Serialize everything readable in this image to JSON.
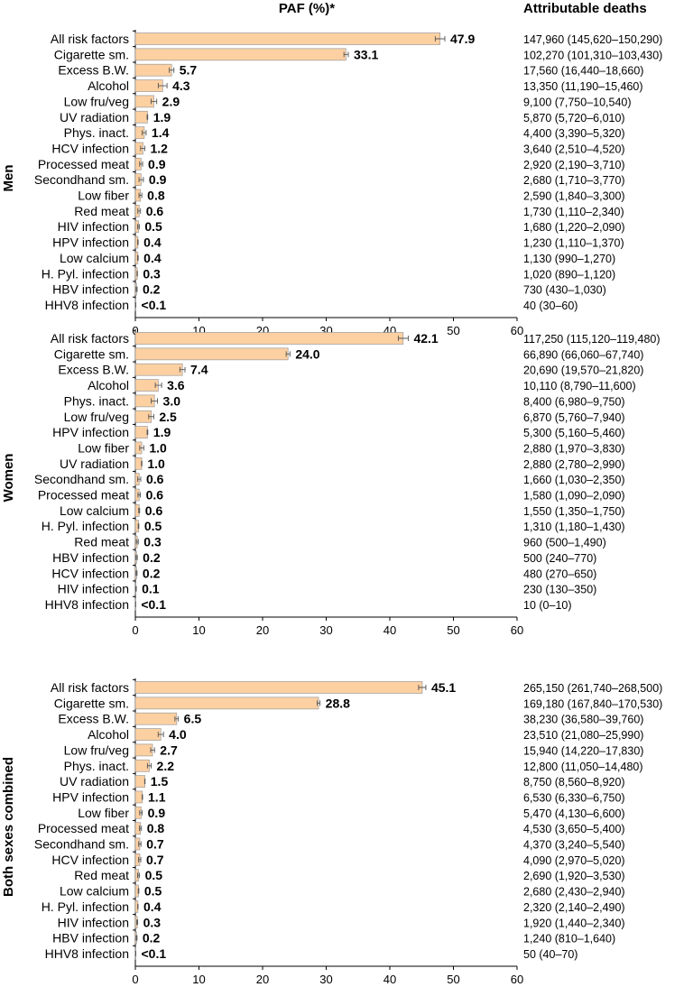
{
  "chart_data": {
    "type": "bar",
    "orientation": "horizontal",
    "title": "PAF (%)*",
    "deaths_header": "Attributable deaths",
    "xlim": [
      0,
      60
    ],
    "xticks": [
      0,
      10,
      20,
      30,
      40,
      50,
      60
    ],
    "colors": {
      "bar": "#fdd0a2",
      "bar_edge": "#9a9a9a",
      "error": "#555555"
    },
    "panels": [
      {
        "name": "Men",
        "rows": [
          {
            "factor": "All risk factors",
            "paf": 47.9,
            "label": "47.9",
            "deaths": "147,960 (145,620–150,290)"
          },
          {
            "factor": "Cigarette sm.",
            "paf": 33.1,
            "label": "33.1",
            "deaths": "102,270 (101,310–103,430)"
          },
          {
            "factor": "Excess B.W.",
            "paf": 5.7,
            "label": "5.7",
            "deaths": "17,560 (16,440–18,660)"
          },
          {
            "factor": "Alcohol",
            "paf": 4.3,
            "label": "4.3",
            "deaths": "13,350 (11,190–15,460)"
          },
          {
            "factor": "Low fru/veg",
            "paf": 2.9,
            "label": "2.9",
            "deaths": "9,100 (7,750–10,540)"
          },
          {
            "factor": "UV radiation",
            "paf": 1.9,
            "label": "1.9",
            "deaths": "5,870 (5,720–6,010)"
          },
          {
            "factor": "Phys. inact.",
            "paf": 1.4,
            "label": "1.4",
            "deaths": "4,400 (3,390–5,320)"
          },
          {
            "factor": "HCV infection",
            "paf": 1.2,
            "label": "1.2",
            "deaths": "3,640 (2,510–4,520)"
          },
          {
            "factor": "Processed meat",
            "paf": 0.9,
            "label": "0.9",
            "deaths": "2,920 (2,190–3,710)"
          },
          {
            "factor": "Secondhand sm.",
            "paf": 0.9,
            "label": "0.9",
            "deaths": "2,680 (1,710–3,770)"
          },
          {
            "factor": "Low fiber",
            "paf": 0.8,
            "label": "0.8",
            "deaths": "2,590 (1,840–3,300)"
          },
          {
            "factor": "Red meat",
            "paf": 0.6,
            "label": "0.6",
            "deaths": "1,730 (1,110–2,340)"
          },
          {
            "factor": "HIV infection",
            "paf": 0.5,
            "label": "0.5",
            "deaths": "1,680 (1,220–2,090)"
          },
          {
            "factor": "HPV infection",
            "paf": 0.4,
            "label": "0.4",
            "deaths": "1,230 (1,110–1,370)"
          },
          {
            "factor": "Low calcium",
            "paf": 0.4,
            "label": "0.4",
            "deaths": "1,130 (990–1,270)"
          },
          {
            "factor": "H. Pyl. infection",
            "paf": 0.3,
            "label": "0.3",
            "deaths": "1,020 (890–1,120)"
          },
          {
            "factor": "HBV infection",
            "paf": 0.2,
            "label": "0.2",
            "deaths": "730 (430–1,030)"
          },
          {
            "factor": "HHV8 infection",
            "paf": 0.05,
            "label": "<0.1",
            "deaths": "40 (30–60)"
          }
        ]
      },
      {
        "name": "Women",
        "rows": [
          {
            "factor": "All risk factors",
            "paf": 42.1,
            "label": "42.1",
            "deaths": "117,250 (115,120–119,480)"
          },
          {
            "factor": "Cigarette sm.",
            "paf": 24.0,
            "label": "24.0",
            "deaths": "66,890 (66,060–67,740)"
          },
          {
            "factor": "Excess B.W.",
            "paf": 7.4,
            "label": "7.4",
            "deaths": "20,690 (19,570–21,820)"
          },
          {
            "factor": "Alcohol",
            "paf": 3.6,
            "label": "3.6",
            "deaths": "10,110 (8,790–11,600)"
          },
          {
            "factor": "Phys. inact.",
            "paf": 3.0,
            "label": "3.0",
            "deaths": "8,400 (6,980–9,750)"
          },
          {
            "factor": "Low fru/veg",
            "paf": 2.5,
            "label": "2.5",
            "deaths": "6,870 (5,760–7,940)"
          },
          {
            "factor": "HPV infection",
            "paf": 1.9,
            "label": "1.9",
            "deaths": "5,300 (5,160–5,460)"
          },
          {
            "factor": "Low fiber",
            "paf": 1.0,
            "label": "1.0",
            "deaths": "2,880 (1,970–3,830)"
          },
          {
            "factor": "UV radiation",
            "paf": 1.0,
            "label": "1.0",
            "deaths": "2,880 (2,780–2,990)"
          },
          {
            "factor": "Secondhand sm.",
            "paf": 0.6,
            "label": "0.6",
            "deaths": "1,660 (1,030–2,350)"
          },
          {
            "factor": "Processed meat",
            "paf": 0.6,
            "label": "0.6",
            "deaths": "1,580 (1,090–2,090)"
          },
          {
            "factor": "Low calcium",
            "paf": 0.6,
            "label": "0.6",
            "deaths": "1,550 (1,350–1,750)"
          },
          {
            "factor": "H. Pyl. infection",
            "paf": 0.5,
            "label": "0.5",
            "deaths": "1,310 (1,180–1,430)"
          },
          {
            "factor": "Red meat",
            "paf": 0.3,
            "label": "0.3",
            "deaths": "960 (500–1,490)"
          },
          {
            "factor": "HBV infection",
            "paf": 0.2,
            "label": "0.2",
            "deaths": "500 (240–770)"
          },
          {
            "factor": "HCV infection",
            "paf": 0.2,
            "label": "0.2",
            "deaths": "480 (270–650)"
          },
          {
            "factor": "HIV infection",
            "paf": 0.1,
            "label": "0.1",
            "deaths": "230 (130–350)"
          },
          {
            "factor": "HHV8 infection",
            "paf": 0.05,
            "label": "<0.1",
            "deaths": "10 (0–10)"
          }
        ]
      },
      {
        "name": "Both sexes combined",
        "rows": [
          {
            "factor": "All risk factors",
            "paf": 45.1,
            "label": "45.1",
            "deaths": "265,150 (261,740–268,500)"
          },
          {
            "factor": "Cigarette sm.",
            "paf": 28.8,
            "label": "28.8",
            "deaths": "169,180 (167,840–170,530)"
          },
          {
            "factor": "Excess B.W.",
            "paf": 6.5,
            "label": "6.5",
            "deaths": "38,230 (36,580–39,760)"
          },
          {
            "factor": "Alcohol",
            "paf": 4.0,
            "label": "4.0",
            "deaths": "23,510 (21,080–25,990)"
          },
          {
            "factor": "Low fru/veg",
            "paf": 2.7,
            "label": "2.7",
            "deaths": "15,940 (14,220–17,830)"
          },
          {
            "factor": "Phys. inact.",
            "paf": 2.2,
            "label": "2.2",
            "deaths": "12,800 (11,050–14,480)"
          },
          {
            "factor": "UV radiation",
            "paf": 1.5,
            "label": "1.5",
            "deaths": "8,750 (8,560–8,920)"
          },
          {
            "factor": "HPV infection",
            "paf": 1.1,
            "label": "1.1",
            "deaths": "6,530 (6,330–6,750)"
          },
          {
            "factor": "Low fiber",
            "paf": 0.9,
            "label": "0.9",
            "deaths": "5,470 (4,130–6,600)"
          },
          {
            "factor": "Processed meat",
            "paf": 0.8,
            "label": "0.8",
            "deaths": "4,530 (3,650–5,400)"
          },
          {
            "factor": "Secondhand sm.",
            "paf": 0.7,
            "label": "0.7",
            "deaths": "4,370 (3,240–5,540)"
          },
          {
            "factor": "HCV infection",
            "paf": 0.7,
            "label": "0.7",
            "deaths": "4,090 (2,970–5,020)"
          },
          {
            "factor": "Red meat",
            "paf": 0.5,
            "label": "0.5",
            "deaths": "2,690 (1,920–3,530)"
          },
          {
            "factor": "Low calcium",
            "paf": 0.5,
            "label": "0.5",
            "deaths": "2,680 (2,430–2,940)"
          },
          {
            "factor": "H. Pyl. infection",
            "paf": 0.4,
            "label": "0.4",
            "deaths": "2,320 (2,140–2,490)"
          },
          {
            "factor": "HIV infection",
            "paf": 0.3,
            "label": "0.3",
            "deaths": "1,920 (1,440–2,340)"
          },
          {
            "factor": "HBV infection",
            "paf": 0.2,
            "label": "0.2",
            "deaths": "1,240 (810–1,640)"
          },
          {
            "factor": "HHV8 infection",
            "paf": 0.05,
            "label": "<0.1",
            "deaths": "50 (40–70)"
          }
        ]
      }
    ]
  }
}
